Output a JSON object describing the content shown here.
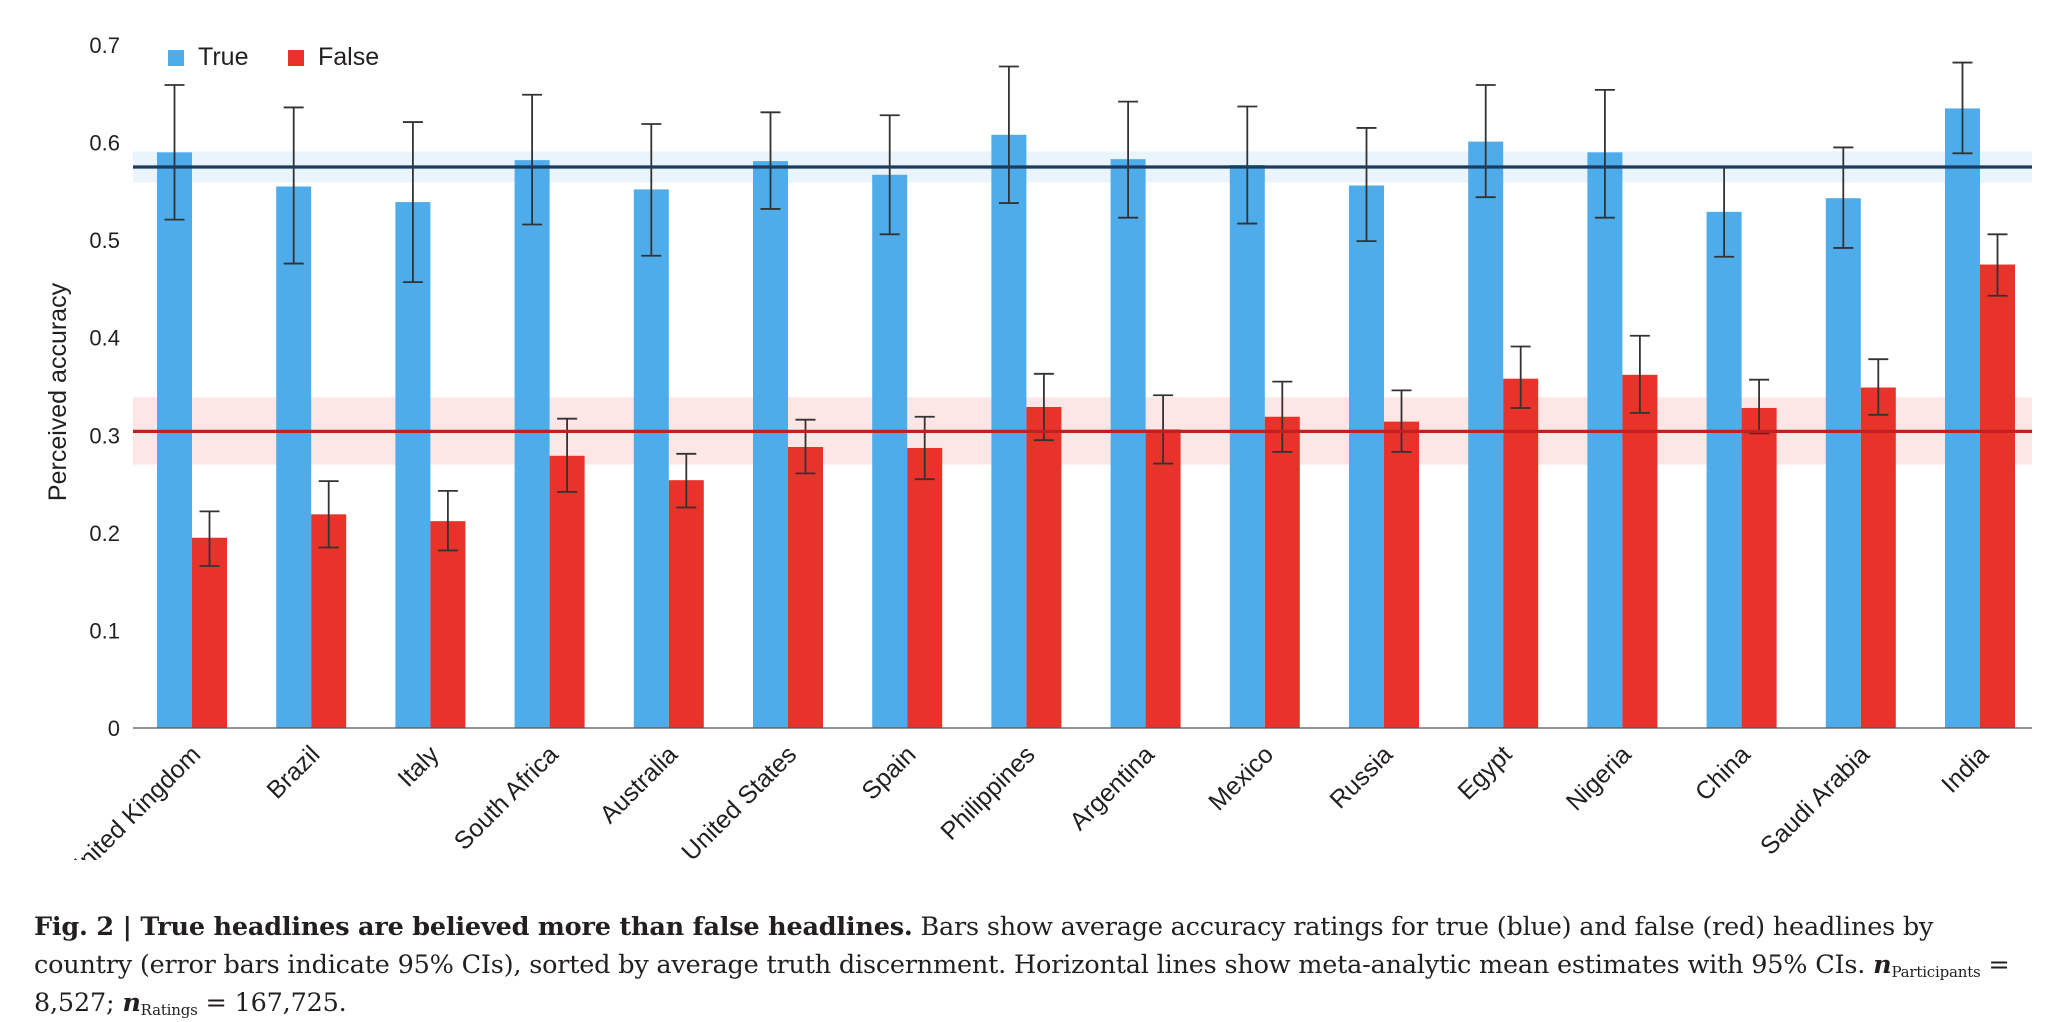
{
  "chart_data": {
    "type": "bar",
    "title": "",
    "xlabel": "",
    "ylabel": "Perceived accuracy",
    "ylim": [
      0,
      0.7
    ],
    "yticks": [
      "0",
      "0.1",
      "0.2",
      "0.3",
      "0.4",
      "0.5",
      "0.6",
      "0.7"
    ],
    "categories": [
      "United Kingdom",
      "Brazil",
      "Italy",
      "South Africa",
      "Australia",
      "United States",
      "Spain",
      "Philippines",
      "Argentina",
      "Mexico",
      "Russia",
      "Egypt",
      "Nigeria",
      "China",
      "Saudi Arabia",
      "India"
    ],
    "legend_position": "top-left",
    "grid": false,
    "series": [
      {
        "name": "True",
        "color": "#4FACEA",
        "values": [
          0.59,
          0.555,
          0.539,
          0.582,
          0.552,
          0.581,
          0.567,
          0.608,
          0.583,
          0.577,
          0.556,
          0.601,
          0.59,
          0.529,
          0.543,
          0.635
        ],
        "ci_low": [
          0.521,
          0.476,
          0.457,
          0.516,
          0.484,
          0.532,
          0.506,
          0.538,
          0.523,
          0.517,
          0.499,
          0.544,
          0.523,
          0.483,
          0.492,
          0.589
        ],
        "ci_high": [
          0.659,
          0.636,
          0.621,
          0.649,
          0.619,
          0.631,
          0.628,
          0.678,
          0.642,
          0.637,
          0.615,
          0.659,
          0.654,
          0.575,
          0.595,
          0.682
        ]
      },
      {
        "name": "False",
        "color": "#E8332A",
        "values": [
          0.195,
          0.219,
          0.212,
          0.279,
          0.254,
          0.288,
          0.287,
          0.329,
          0.306,
          0.319,
          0.314,
          0.358,
          0.362,
          0.328,
          0.349,
          0.475
        ],
        "ci_low": [
          0.166,
          0.185,
          0.182,
          0.242,
          0.226,
          0.261,
          0.255,
          0.295,
          0.271,
          0.283,
          0.283,
          0.328,
          0.323,
          0.302,
          0.321,
          0.443
        ],
        "ci_high": [
          0.222,
          0.253,
          0.243,
          0.317,
          0.281,
          0.316,
          0.319,
          0.363,
          0.341,
          0.355,
          0.346,
          0.391,
          0.402,
          0.357,
          0.378,
          0.506
        ]
      }
    ],
    "reference_lines": [
      {
        "series": "True",
        "value": 0.575,
        "ci_low": 0.559,
        "ci_high": 0.591,
        "color": "#1F3A5F",
        "band_color": "#E6F2FC"
      },
      {
        "series": "False",
        "value": 0.304,
        "ci_low": 0.27,
        "ci_high": 0.339,
        "color": "#C0201E",
        "band_color": "#FCE3E2"
      }
    ]
  },
  "caption": {
    "label": "Fig. 2 | True headlines are believed more than false headlines.",
    "text": " Bars show average accuracy ratings for true (blue) and false (red) headlines by country (error bars indicate 95% CIs), sorted by average truth discernment. Horizontal lines show meta-analytic mean estimates with 95% CIs. ",
    "n_symbol": "n",
    "participants_sub": "Participants",
    "participants_value": " = 8,527; ",
    "ratings_sub": "Ratings",
    "ratings_value": " = 167,725."
  }
}
